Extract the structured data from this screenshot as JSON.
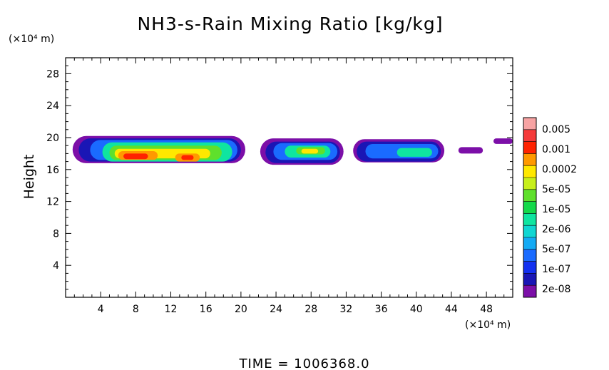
{
  "chart_data": {
    "type": "heatmap",
    "title": "NH3-s-Rain Mixing Ratio [kg/kg]",
    "ylabel": "Height",
    "xlabel": "",
    "y_unit": "(×10⁴ m)",
    "x_unit": "(×10⁴ m)",
    "xlim": [
      0,
      51
    ],
    "ylim": [
      0,
      30
    ],
    "x_ticks": [
      4,
      8,
      12,
      16,
      20,
      24,
      28,
      32,
      36,
      40,
      44,
      48
    ],
    "y_ticks": [
      4,
      8,
      12,
      16,
      20,
      24,
      28
    ],
    "x_tick_labels": [
      "4",
      "8",
      "12",
      "16",
      "20",
      "24",
      "28",
      "32",
      "36",
      "40",
      "44",
      "48"
    ],
    "y_tick_labels": [
      "4",
      "8",
      "12",
      "16",
      "20",
      "24",
      "28"
    ],
    "colorbar": {
      "labels": [
        "0.005",
        "0.001",
        "0.0002",
        "5e-05",
        "1e-05",
        "2e-06",
        "5e-07",
        "1e-07",
        "2e-08"
      ],
      "colors": [
        "#f7a3a3",
        "#f53a3a",
        "#ff2200",
        "#ff9900",
        "#ffe800",
        "#c7ef1a",
        "#5fe02c",
        "#14d94a",
        "#0fe5a0",
        "#10d6d2",
        "#13aaf4",
        "#1a6bff",
        "#1330f0",
        "#1a16b5",
        "#7c0fa8"
      ]
    },
    "regions": [
      {
        "level": 1,
        "x": [
          0.8,
          20.5
        ],
        "y": [
          16.8,
          20.2
        ]
      },
      {
        "level": 1,
        "x": [
          22.2,
          31.7
        ],
        "y": [
          16.6,
          19.9
        ]
      },
      {
        "level": 1,
        "x": [
          32.8,
          43.2
        ],
        "y": [
          16.9,
          19.8
        ]
      },
      {
        "level": 1,
        "x": [
          44.8,
          47.6
        ],
        "y": [
          18.0,
          18.8
        ]
      },
      {
        "level": 1,
        "x": [
          48.8,
          51.0
        ],
        "y": [
          19.2,
          19.9
        ]
      },
      {
        "level": 2,
        "x": [
          1.5,
          20.0
        ],
        "y": [
          17.0,
          19.9
        ]
      },
      {
        "level": 2,
        "x": [
          22.8,
          31.3
        ],
        "y": [
          16.8,
          19.5
        ]
      },
      {
        "level": 2,
        "x": [
          33.2,
          42.8
        ],
        "y": [
          17.0,
          19.5
        ]
      },
      {
        "level": 4,
        "x": [
          2.8,
          19.6
        ],
        "y": [
          17.2,
          19.7
        ]
      },
      {
        "level": 4,
        "x": [
          23.7,
          31.0
        ],
        "y": [
          17.2,
          19.3
        ]
      },
      {
        "level": 4,
        "x": [
          34.2,
          42.5
        ],
        "y": [
          17.4,
          19.2
        ]
      },
      {
        "level": 7,
        "x": [
          4.2,
          19.0
        ],
        "y": [
          17.0,
          19.4
        ]
      },
      {
        "level": 7,
        "x": [
          25.0,
          30.2
        ],
        "y": [
          17.5,
          19.0
        ]
      },
      {
        "level": 7,
        "x": [
          37.8,
          41.8
        ],
        "y": [
          17.6,
          18.7
        ]
      },
      {
        "level": 9,
        "x": [
          5.0,
          17.8
        ],
        "y": [
          17.2,
          19.0
        ]
      },
      {
        "level": 9,
        "x": [
          26.3,
          29.6
        ],
        "y": [
          17.9,
          18.8
        ]
      },
      {
        "level": 11,
        "x": [
          5.6,
          16.5
        ],
        "y": [
          17.4,
          18.6
        ]
      },
      {
        "level": 11,
        "x": [
          26.9,
          28.8
        ],
        "y": [
          18.0,
          18.6
        ]
      },
      {
        "level": 12,
        "x": [
          6.0,
          10.5
        ],
        "y": [
          17.2,
          18.3
        ]
      },
      {
        "level": 12,
        "x": [
          12.5,
          15.3
        ],
        "y": [
          17.0,
          18.0
        ]
      },
      {
        "level": 13,
        "x": [
          6.6,
          9.4
        ],
        "y": [
          17.3,
          18.0
        ]
      },
      {
        "level": 13,
        "x": [
          13.2,
          14.6
        ],
        "y": [
          17.2,
          17.8
        ]
      }
    ]
  },
  "footer": {
    "time_text": "TIME  =  1006368.0"
  }
}
